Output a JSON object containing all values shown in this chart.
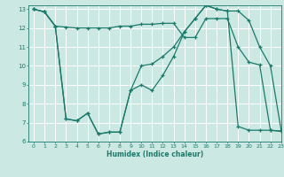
{
  "xlabel": "Humidex (Indice chaleur)",
  "background_color": "#cbe8e3",
  "line_color": "#1a7a6a",
  "grid_color": "#ffffff",
  "xlim": [
    -0.5,
    23
  ],
  "ylim": [
    6,
    13.2
  ],
  "yticks": [
    6,
    7,
    8,
    9,
    10,
    11,
    12,
    13
  ],
  "xticks": [
    0,
    1,
    2,
    3,
    4,
    5,
    6,
    7,
    8,
    9,
    10,
    11,
    12,
    13,
    14,
    15,
    16,
    17,
    18,
    19,
    20,
    21,
    22,
    23
  ],
  "s1x": [
    0,
    1,
    2,
    3,
    4,
    5,
    6,
    7,
    8,
    9,
    10,
    11,
    12,
    13,
    14,
    15,
    16,
    17,
    18,
    19,
    20,
    21,
    22,
    23
  ],
  "s1y": [
    13.0,
    12.85,
    12.1,
    12.05,
    12.0,
    12.0,
    12.0,
    12.0,
    12.1,
    12.1,
    12.2,
    12.2,
    12.25,
    12.25,
    11.5,
    11.5,
    12.5,
    12.5,
    12.5,
    11.0,
    10.2,
    10.05,
    6.6,
    6.55
  ],
  "s2x": [
    0,
    1,
    2,
    3,
    4,
    5,
    6,
    7,
    8,
    9,
    10,
    11,
    12,
    13,
    14,
    15,
    16,
    17,
    18,
    19,
    20,
    21,
    22,
    23
  ],
  "s2y": [
    13.0,
    12.85,
    12.1,
    7.2,
    7.1,
    7.5,
    6.4,
    6.5,
    6.5,
    8.7,
    10.0,
    10.1,
    10.5,
    11.0,
    11.8,
    12.5,
    13.2,
    13.0,
    12.9,
    12.9,
    12.4,
    11.0,
    10.0,
    6.6
  ],
  "s3x": [
    0,
    1,
    2,
    3,
    4,
    5,
    6,
    7,
    8,
    9,
    10,
    11,
    12,
    13,
    14,
    15,
    16,
    17,
    18,
    19,
    20,
    21,
    22,
    23
  ],
  "s3y": [
    13.0,
    12.85,
    12.1,
    7.2,
    7.1,
    7.5,
    6.4,
    6.5,
    6.5,
    8.7,
    9.0,
    8.7,
    9.5,
    10.5,
    11.8,
    12.5,
    13.2,
    13.0,
    12.9,
    6.8,
    6.6,
    6.6,
    6.6,
    6.55
  ]
}
